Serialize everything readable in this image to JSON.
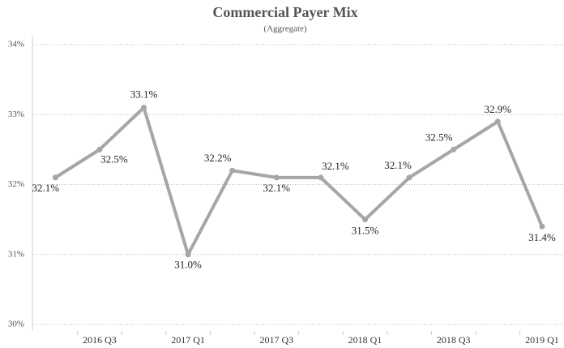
{
  "chart_data": {
    "type": "line",
    "title": "Commercial Payer Mix",
    "subtitle": "(Aggregate)",
    "categories": [
      null,
      "2016 Q3",
      null,
      "2017 Q1",
      null,
      "2017 Q3",
      null,
      "2018 Q1",
      null,
      "2018 Q3",
      null,
      "2019 Q1"
    ],
    "values": [
      32.1,
      32.5,
      33.1,
      31.0,
      32.2,
      32.1,
      32.1,
      31.5,
      32.1,
      32.5,
      32.9,
      31.4
    ],
    "value_labels": [
      "32.1%",
      "32.5%",
      "33.1%",
      "31.0%",
      "32.2%",
      "32.1%",
      "32.1%",
      "31.5%",
      "32.1%",
      "32.5%",
      "32.9%",
      "31.4%"
    ],
    "color": "#a6a6a6",
    "ylim": [
      30,
      34
    ],
    "yticks": [
      {
        "value": 30,
        "label": "30%"
      },
      {
        "value": 31,
        "label": "31%"
      },
      {
        "value": 32,
        "label": "32%"
      },
      {
        "value": 33,
        "label": "33%"
      },
      {
        "value": 34,
        "label": "34%"
      }
    ],
    "grid": true
  }
}
